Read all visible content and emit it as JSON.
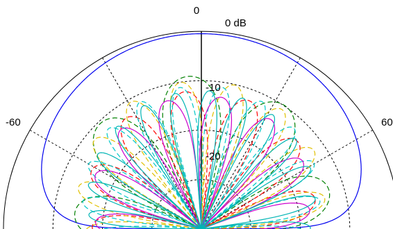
{
  "chart_data": {
    "type": "polar",
    "angle_labels": [
      "0",
      "-60",
      "60"
    ],
    "radial_labels": [
      "0 dB",
      "-10",
      "-20"
    ],
    "angle_range_deg": [
      -90,
      90
    ],
    "radial_range_db": [
      -40,
      0
    ],
    "series": [
      {
        "style": "solid",
        "color": "#0000ee",
        "kind": "wide_lobe"
      },
      {
        "style": "dashed",
        "color": "#008000",
        "kind": "lobes",
        "lobes": 9,
        "envelope_db": -9
      },
      {
        "style": "dashed",
        "color": "#ff0000",
        "kind": "lobes",
        "lobes": 13,
        "envelope_db": -12
      },
      {
        "style": "dashed",
        "color": "#e0c000",
        "kind": "lobes",
        "lobes": 17,
        "envelope_db": -10
      },
      {
        "style": "dashed",
        "color": "#00c8c8",
        "kind": "lobes",
        "lobes": 21,
        "envelope_db": -11
      },
      {
        "style": "solid",
        "color": "#cc00cc",
        "kind": "lobes",
        "lobes": 15,
        "envelope_db": -13
      },
      {
        "style": "solid",
        "color": "#00b4b4",
        "kind": "lobes",
        "lobes": 25,
        "envelope_db": -12
      }
    ]
  }
}
